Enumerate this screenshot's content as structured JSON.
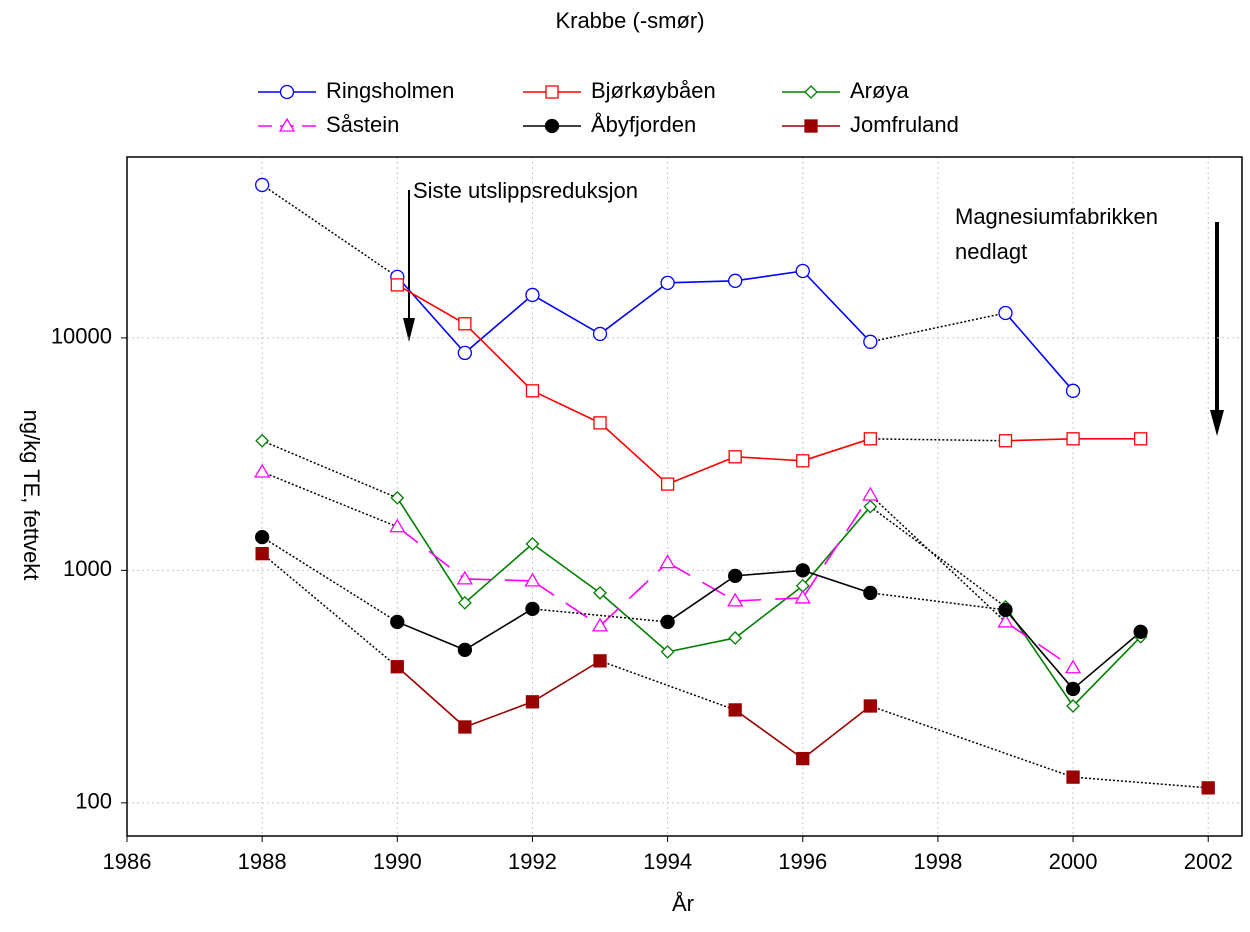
{
  "chart_data": {
    "type": "line",
    "title": "Krabbe (-smør)",
    "x_label": "År",
    "y_label": "ng/kg TE, fettvekt",
    "log_scale_y": true,
    "grid": true,
    "xlim": [
      1986,
      2002.5
    ],
    "xticks": [
      1986,
      1988,
      1990,
      1992,
      1994,
      1996,
      1998,
      2000,
      2002
    ],
    "ylim": [
      72,
      60000
    ],
    "yticks": [
      100,
      1000,
      10000
    ],
    "annotations": [
      "Siste utslippsreduksjon",
      "Magnesiumfabrikken",
      "nedlagt"
    ],
    "series": [
      {
        "name": "Ringsholmen",
        "color": "#0000ff",
        "marker": "circle",
        "filled": false,
        "dashed": false,
        "x": [
          1988,
          1990,
          1991,
          1992,
          1993,
          1994,
          1995,
          1996,
          1997,
          1999,
          2000
        ],
        "values": [
          45500,
          18300,
          8620,
          15300,
          10400,
          17250,
          17600,
          19400,
          9620,
          12800,
          5920
        ]
      },
      {
        "name": "Bjørkøybåen",
        "color": "#ff0000",
        "marker": "square",
        "filled": false,
        "dashed": false,
        "x": [
          1990,
          1991,
          1992,
          1993,
          1994,
          1995,
          1996,
          1997,
          1999,
          2000,
          2001
        ],
        "values": [
          16900,
          11500,
          5920,
          4310,
          2350,
          3080,
          2960,
          3680,
          3610,
          3680,
          3680
        ]
      },
      {
        "name": "Arøya",
        "color": "#008000",
        "marker": "diamond",
        "filled": false,
        "dashed": false,
        "x": [
          1988,
          1990,
          1991,
          1992,
          1993,
          1994,
          1995,
          1996,
          1997,
          1999,
          2000,
          2001
        ],
        "values": [
          3610,
          2050,
          725,
          1300,
          800,
          446,
          512,
          858,
          1880,
          697,
          261,
          518
        ]
      },
      {
        "name": "Såstein",
        "color": "#ff00ff",
        "marker": "triangle",
        "filled": false,
        "dashed": true,
        "x": [
          1988,
          1990,
          1991,
          1992,
          1993,
          1994,
          1995,
          1996,
          1997,
          1999,
          2000
        ],
        "values": [
          2650,
          1540,
          919,
          901,
          577,
          1080,
          739,
          761,
          2110,
          600,
          381
        ]
      },
      {
        "name": "Åbyfjorden",
        "color": "#000000",
        "marker": "circle",
        "filled": true,
        "dashed": false,
        "x": [
          1988,
          1990,
          1991,
          1992,
          1994,
          1995,
          1996,
          1997,
          1999,
          2000,
          2001
        ],
        "values": [
          1390,
          600,
          455,
          683,
          600,
          947,
          1000,
          800,
          676,
          309,
          544
        ]
      },
      {
        "name": "Jomfruland",
        "color": "#990000",
        "marker": "square",
        "filled": true,
        "dashed": false,
        "x": [
          1988,
          1990,
          1991,
          1992,
          1993,
          1995,
          1996,
          1997,
          2000,
          2002
        ],
        "values": [
          1180,
          385,
          212,
          272,
          408,
          251,
          155,
          261,
          129,
          116
        ]
      }
    ]
  }
}
